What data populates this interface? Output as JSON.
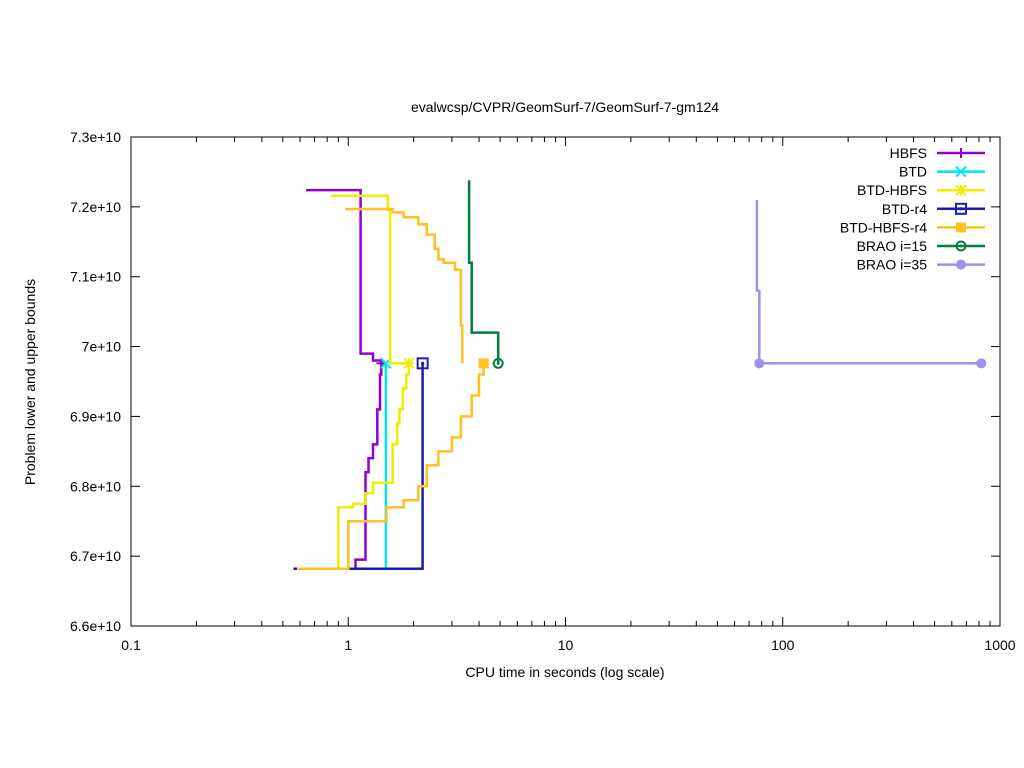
{
  "chart_data": {
    "type": "line",
    "title": "evalwcsp/CVPR/GeomSurf-7/GeomSurf-7-gm124",
    "xlabel": "CPU time in seconds (log scale)",
    "ylabel": "Problem lower and upper bounds",
    "xscale": "log",
    "xlim": [
      0.1,
      1000
    ],
    "ylim": [
      66000000000,
      73000000000
    ],
    "grid": false,
    "legend_position": "top-right",
    "x_ticks": [
      {
        "value": 0.1,
        "label": "0.1"
      },
      {
        "value": 1,
        "label": "1"
      },
      {
        "value": 10,
        "label": "10"
      },
      {
        "value": 100,
        "label": "100"
      },
      {
        "value": 1000,
        "label": "1000"
      }
    ],
    "y_ticks": [
      {
        "value": 66000000000,
        "label": "6.6e+10"
      },
      {
        "value": 67000000000,
        "label": "6.7e+10"
      },
      {
        "value": 68000000000,
        "label": "6.8e+10"
      },
      {
        "value": 69000000000,
        "label": "6.9e+10"
      },
      {
        "value": 70000000000,
        "label": "7e+10"
      },
      {
        "value": 71000000000,
        "label": "7.1e+10"
      },
      {
        "value": 72000000000,
        "label": "7.2e+10"
      },
      {
        "value": 73000000000,
        "label": "7.3e+10"
      }
    ],
    "series": [
      {
        "name": "HBFS",
        "color": "#9400d3",
        "marker": "plus",
        "upper": [
          [
            0.64,
            72240000000
          ],
          [
            1.14,
            72240000000
          ],
          [
            1.14,
            69900000000
          ],
          [
            1.3,
            69900000000
          ],
          [
            1.3,
            69800000000
          ],
          [
            1.42,
            69800000000
          ],
          [
            1.42,
            69760000000
          ]
        ],
        "lower": [
          [
            1.02,
            66820000000
          ],
          [
            1.08,
            66820000000
          ],
          [
            1.08,
            66950000000
          ],
          [
            1.2,
            66950000000
          ],
          [
            1.2,
            68200000000
          ],
          [
            1.24,
            68200000000
          ],
          [
            1.24,
            68400000000
          ],
          [
            1.3,
            68400000000
          ],
          [
            1.3,
            68600000000
          ],
          [
            1.36,
            68600000000
          ],
          [
            1.36,
            69100000000
          ],
          [
            1.4,
            69100000000
          ],
          [
            1.4,
            69600000000
          ],
          [
            1.42,
            69600000000
          ],
          [
            1.42,
            69760000000
          ]
        ],
        "end": [
          1.42,
          69760000000
        ]
      },
      {
        "name": "BTD",
        "color": "#00e5ee",
        "marker": "x",
        "upper": [
          [
            1.49,
            69760000000
          ],
          [
            1.49,
            69760000000
          ]
        ],
        "lower": [
          [
            1.49,
            66820000000
          ],
          [
            1.49,
            69760000000
          ]
        ],
        "end": [
          1.49,
          69760000000
        ]
      },
      {
        "name": "BTD-HBFS",
        "color": "#eeee00",
        "marker": "star",
        "upper": [
          [
            0.83,
            72160000000
          ],
          [
            1.52,
            72160000000
          ],
          [
            1.52,
            71950000000
          ],
          [
            1.56,
            71950000000
          ],
          [
            1.56,
            69760000000
          ],
          [
            1.9,
            69760000000
          ]
        ],
        "lower": [
          [
            0.83,
            66820000000
          ],
          [
            0.9,
            66820000000
          ],
          [
            0.9,
            67700000000
          ],
          [
            1.05,
            67700000000
          ],
          [
            1.05,
            67750000000
          ],
          [
            1.2,
            67750000000
          ],
          [
            1.2,
            67900000000
          ],
          [
            1.3,
            67900000000
          ],
          [
            1.3,
            68050000000
          ],
          [
            1.6,
            68050000000
          ],
          [
            1.6,
            68600000000
          ],
          [
            1.68,
            68600000000
          ],
          [
            1.68,
            68900000000
          ],
          [
            1.72,
            68900000000
          ],
          [
            1.72,
            69100000000
          ],
          [
            1.78,
            69100000000
          ],
          [
            1.78,
            69400000000
          ],
          [
            1.85,
            69400000000
          ],
          [
            1.85,
            69600000000
          ],
          [
            1.9,
            69600000000
          ],
          [
            1.9,
            69760000000
          ]
        ],
        "end": [
          1.9,
          69760000000
        ]
      },
      {
        "name": "BTD-r4",
        "color": "#1c1cb0",
        "marker": "square",
        "upper": [
          [
            2.2,
            69760000000
          ],
          [
            2.2,
            69760000000
          ]
        ],
        "lower": [
          [
            0.56,
            66820000000
          ],
          [
            2.2,
            66820000000
          ],
          [
            2.2,
            69760000000
          ]
        ],
        "end": [
          2.2,
          69760000000
        ]
      },
      {
        "name": "BTD-HBFS-r4",
        "color": "#ffc020",
        "marker": "filled-square",
        "upper": [
          [
            0.97,
            71970000000
          ],
          [
            1.6,
            71970000000
          ],
          [
            1.6,
            71920000000
          ],
          [
            1.8,
            71920000000
          ],
          [
            1.8,
            71850000000
          ],
          [
            2.1,
            71850000000
          ],
          [
            2.1,
            71750000000
          ],
          [
            2.3,
            71750000000
          ],
          [
            2.3,
            71600000000
          ],
          [
            2.5,
            71600000000
          ],
          [
            2.5,
            71400000000
          ],
          [
            2.6,
            71400000000
          ],
          [
            2.6,
            71250000000
          ],
          [
            2.75,
            71250000000
          ],
          [
            2.75,
            71200000000
          ],
          [
            3.1,
            71200000000
          ],
          [
            3.1,
            71100000000
          ],
          [
            3.3,
            71100000000
          ],
          [
            3.3,
            70300000000
          ],
          [
            3.35,
            70300000000
          ],
          [
            3.35,
            69760000000
          ]
        ],
        "lower": [
          [
            0.58,
            66820000000
          ],
          [
            1.0,
            66820000000
          ],
          [
            1.0,
            67500000000
          ],
          [
            1.5,
            67500000000
          ],
          [
            1.5,
            67700000000
          ],
          [
            1.8,
            67700000000
          ],
          [
            1.8,
            67800000000
          ],
          [
            2.1,
            67800000000
          ],
          [
            2.1,
            68000000000
          ],
          [
            2.3,
            68000000000
          ],
          [
            2.3,
            68300000000
          ],
          [
            2.6,
            68300000000
          ],
          [
            2.6,
            68500000000
          ],
          [
            3.0,
            68500000000
          ],
          [
            3.0,
            68700000000
          ],
          [
            3.3,
            68700000000
          ],
          [
            3.3,
            69000000000
          ],
          [
            3.7,
            69000000000
          ],
          [
            3.7,
            69300000000
          ],
          [
            4.0,
            69300000000
          ],
          [
            4.0,
            69600000000
          ],
          [
            4.2,
            69600000000
          ],
          [
            4.2,
            69760000000
          ]
        ],
        "end": [
          4.2,
          69760000000
        ]
      },
      {
        "name": "BRAO i=15",
        "color": "#007f3f",
        "marker": "circle",
        "upper": [
          [
            3.6,
            72380000000
          ],
          [
            3.6,
            71200000000
          ],
          [
            3.7,
            71200000000
          ],
          [
            3.7,
            70200000000
          ],
          [
            4.9,
            70200000000
          ],
          [
            4.9,
            69760000000
          ]
        ],
        "lower": [],
        "end": [
          4.9,
          69760000000
        ]
      },
      {
        "name": "BRAO i=35",
        "color": "#9f8fef",
        "marker": "filled-circle",
        "upper": [
          [
            76,
            72100000000
          ],
          [
            76,
            70800000000
          ],
          [
            78,
            70800000000
          ],
          [
            78,
            69760000000
          ],
          [
            820,
            69760000000
          ]
        ],
        "lower": [],
        "end": [
          820,
          69760000000
        ],
        "start_marker": [
          78,
          69760000000
        ]
      }
    ]
  }
}
